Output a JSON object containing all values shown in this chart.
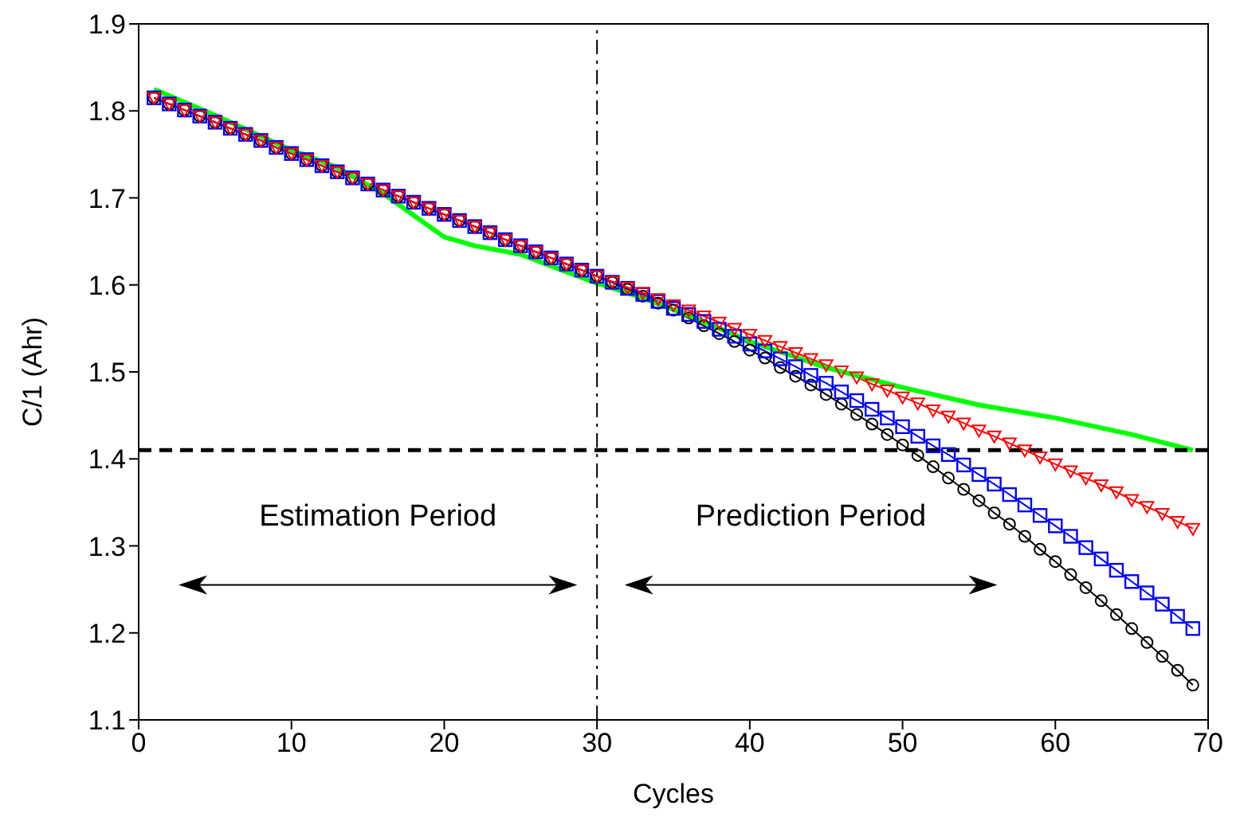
{
  "chart_data": {
    "type": "line",
    "xlabel": "Cycles",
    "ylabel": "C/1 (Ahr)",
    "xlim": [
      0,
      70
    ],
    "xticks": [
      0,
      10,
      20,
      30,
      40,
      50,
      60,
      70
    ],
    "ylim": [
      1.1,
      1.9
    ],
    "yticks": [
      1.1,
      1.2,
      1.3,
      1.4,
      1.5,
      1.6,
      1.7,
      1.8,
      1.9
    ],
    "line_style": "solid",
    "x": [
      1,
      2,
      3,
      4,
      5,
      6,
      7,
      8,
      9,
      10,
      11,
      12,
      13,
      14,
      15,
      16,
      17,
      18,
      19,
      20,
      21,
      22,
      23,
      24,
      25,
      26,
      27,
      28,
      29,
      30,
      31,
      32,
      33,
      34,
      35,
      36,
      37,
      38,
      39,
      40,
      41,
      42,
      43,
      44,
      45,
      46,
      47,
      48,
      49,
      50,
      51,
      52,
      53,
      54,
      55,
      56,
      57,
      58,
      59,
      60,
      61,
      62,
      63,
      64,
      65,
      66,
      67,
      68,
      69
    ],
    "series": [
      {
        "color": "#000000",
        "marker": "circle",
        "values": [
          1.815,
          1.808,
          1.801,
          1.794,
          1.787,
          1.78,
          1.773,
          1.766,
          1.758,
          1.751,
          1.744,
          1.737,
          1.73,
          1.723,
          1.716,
          1.709,
          1.702,
          1.695,
          1.688,
          1.681,
          1.674,
          1.667,
          1.66,
          1.652,
          1.645,
          1.638,
          1.631,
          1.624,
          1.617,
          1.61,
          1.603,
          1.595,
          1.587,
          1.579,
          1.571,
          1.562,
          1.553,
          1.544,
          1.535,
          1.525,
          1.516,
          1.505,
          1.495,
          1.485,
          1.474,
          1.463,
          1.451,
          1.44,
          1.428,
          1.416,
          1.404,
          1.391,
          1.378,
          1.365,
          1.352,
          1.338,
          1.325,
          1.311,
          1.296,
          1.282,
          1.267,
          1.252,
          1.237,
          1.221,
          1.205,
          1.189,
          1.173,
          1.157,
          1.14
        ]
      },
      {
        "color": "#0000ff",
        "marker": "square",
        "values": [
          1.815,
          1.808,
          1.801,
          1.794,
          1.787,
          1.78,
          1.773,
          1.766,
          1.758,
          1.751,
          1.744,
          1.737,
          1.73,
          1.723,
          1.716,
          1.709,
          1.702,
          1.695,
          1.688,
          1.681,
          1.674,
          1.667,
          1.66,
          1.652,
          1.645,
          1.638,
          1.631,
          1.624,
          1.617,
          1.61,
          1.603,
          1.596,
          1.589,
          1.581,
          1.573,
          1.566,
          1.558,
          1.549,
          1.541,
          1.532,
          1.524,
          1.515,
          1.506,
          1.496,
          1.487,
          1.477,
          1.467,
          1.457,
          1.447,
          1.437,
          1.426,
          1.415,
          1.405,
          1.393,
          1.382,
          1.371,
          1.359,
          1.347,
          1.335,
          1.323,
          1.311,
          1.298,
          1.285,
          1.272,
          1.259,
          1.246,
          1.233,
          1.219,
          1.205
        ]
      },
      {
        "color": "#ff0000",
        "marker": "triangle",
        "values": [
          1.815,
          1.808,
          1.801,
          1.794,
          1.787,
          1.78,
          1.773,
          1.766,
          1.758,
          1.751,
          1.744,
          1.737,
          1.73,
          1.723,
          1.716,
          1.709,
          1.702,
          1.695,
          1.688,
          1.681,
          1.674,
          1.667,
          1.66,
          1.652,
          1.645,
          1.638,
          1.631,
          1.624,
          1.617,
          1.61,
          1.604,
          1.597,
          1.591,
          1.584,
          1.577,
          1.571,
          1.564,
          1.557,
          1.55,
          1.543,
          1.536,
          1.529,
          1.522,
          1.515,
          1.508,
          1.501,
          1.494,
          1.486,
          1.479,
          1.471,
          1.464,
          1.456,
          1.449,
          1.441,
          1.433,
          1.426,
          1.418,
          1.41,
          1.402,
          1.394,
          1.386,
          1.378,
          1.37,
          1.362,
          1.353,
          1.345,
          1.337,
          1.328,
          1.32
        ]
      },
      {
        "color": "#00ff00",
        "marker": "none",
        "x": [
          1,
          5,
          10,
          13,
          16,
          20,
          22,
          25,
          28,
          30,
          33,
          36,
          40,
          45,
          50,
          55,
          60,
          65,
          69
        ],
        "values": [
          1.825,
          1.795,
          1.755,
          1.735,
          1.705,
          1.655,
          1.645,
          1.635,
          1.615,
          1.602,
          1.585,
          1.565,
          1.535,
          1.505,
          1.482,
          1.462,
          1.447,
          1.428,
          1.41
        ]
      }
    ],
    "ref_lines": [
      {
        "axis": "y",
        "value": 1.41,
        "color": "#000000",
        "line_style": "dashed"
      },
      {
        "axis": "x",
        "value": 30,
        "color": "#000000",
        "line_style": "dashed"
      }
    ],
    "annotations": [
      "Estimation Period",
      "Prediction Period"
    ]
  }
}
